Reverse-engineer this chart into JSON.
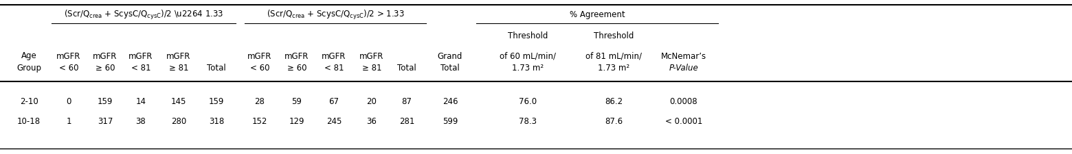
{
  "group1_header_tex": "(Scr/Q$_{\\mathrm{crea}}$ + ScysC/Q$_{\\mathrm{cysC}}$)/2 ≤ 1.33",
  "group2_header_tex": "(Scr/Q$_{\\mathrm{crea}}$ + ScysC/Q$_{\\mathrm{cysC}}$)/2 > 1.33",
  "group3_header": "% Agreement",
  "rows": [
    [
      "2-10",
      "0",
      "159",
      "14",
      "145",
      "159",
      "28",
      "59",
      "67",
      "20",
      "87",
      "246",
      "76.0",
      "86.2",
      "0.0008"
    ],
    [
      "10-18",
      "1",
      "317",
      "38",
      "280",
      "318",
      "152",
      "129",
      "245",
      "36",
      "281",
      "599",
      "78.3",
      "87.6",
      "< 0.0001"
    ]
  ],
  "bg_color": "#ffffff",
  "text_color": "#000000",
  "font_size": 8.5
}
